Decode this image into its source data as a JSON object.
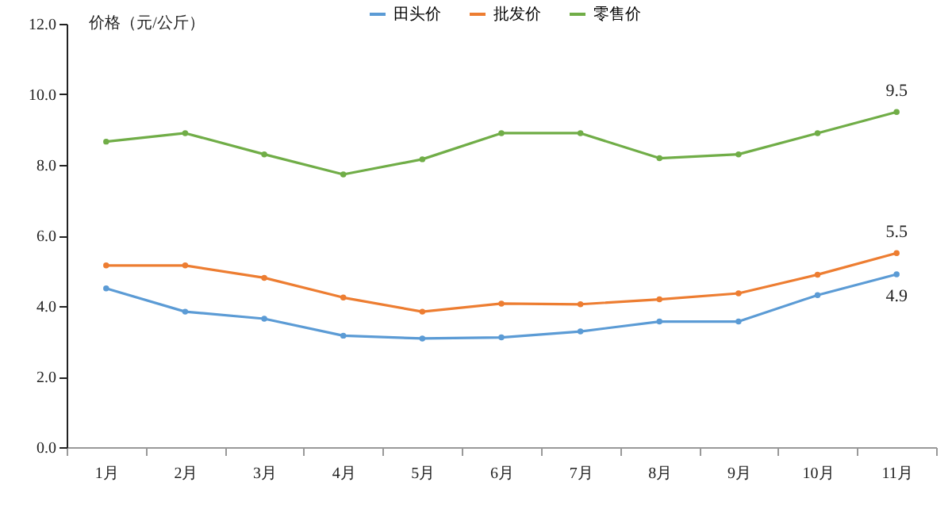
{
  "chart_data": {
    "type": "line",
    "ylabel": "价格（元/公斤）",
    "categories": [
      "1月",
      "2月",
      "3月",
      "4月",
      "5月",
      "6月",
      "7月",
      "8月",
      "9月",
      "10月",
      "11月"
    ],
    "series": [
      {
        "name": "田头价",
        "color": "#5b9bd5",
        "values": [
          4.5,
          3.84,
          3.64,
          3.16,
          3.08,
          3.11,
          3.28,
          3.56,
          3.56,
          4.31,
          4.9
        ]
      },
      {
        "name": "批发价",
        "color": "#ed7d31",
        "values": [
          5.15,
          5.15,
          4.8,
          4.24,
          3.84,
          4.07,
          4.05,
          4.19,
          4.36,
          4.89,
          5.5
        ]
      },
      {
        "name": "零售价",
        "color": "#70ad47",
        "values": [
          8.66,
          8.9,
          8.3,
          7.73,
          8.16,
          8.9,
          8.9,
          8.19,
          8.3,
          8.9,
          9.5
        ]
      }
    ],
    "ylim": [
      0,
      12
    ],
    "yticks": [
      {
        "value": 0,
        "label": "0.0"
      },
      {
        "value": 2,
        "label": "2.0"
      },
      {
        "value": 4,
        "label": "4.0"
      },
      {
        "value": 6,
        "label": "6.0"
      },
      {
        "value": 8,
        "label": "8.0"
      },
      {
        "value": 10,
        "label": "10.0"
      },
      {
        "value": 12,
        "label": "12.0"
      }
    ],
    "annotations": [
      {
        "text": "9.5",
        "x": "11月",
        "y": 9.5
      },
      {
        "text": "5.5",
        "x": "11月",
        "y": 5.5
      },
      {
        "text": "4.9",
        "x": "11月",
        "y": 4.9
      }
    ],
    "legend": "top",
    "marker": "circle",
    "line_style": "solid",
    "grid": false
  }
}
